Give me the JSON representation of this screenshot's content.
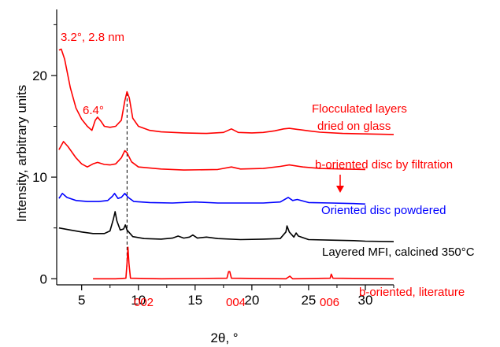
{
  "chart_data": {
    "type": "line",
    "xlabel": "2θ, °",
    "ylabel": "Intensity, arbitrary units",
    "xlim": [
      2.8,
      32.5
    ],
    "ylim": [
      -0.6,
      26.5
    ],
    "xticks": [
      5,
      10,
      15,
      20,
      25,
      30
    ],
    "yticks": [
      0,
      10,
      20
    ],
    "x_tick_labels": [
      "5",
      "10",
      "15",
      "20",
      "25",
      "30"
    ],
    "y_tick_labels": [
      "0",
      "10",
      "20"
    ],
    "reference_line_x": 9.0,
    "series": [
      {
        "name": "Flocculated layers dried on glass",
        "label_lines": [
          "Flocculated layers",
          "dried on glass"
        ],
        "color": "#ff0000",
        "points": [
          [
            3.0,
            22.5
          ],
          [
            3.2,
            22.6
          ],
          [
            3.5,
            21.6
          ],
          [
            4.0,
            18.8
          ],
          [
            4.5,
            16.8
          ],
          [
            5.0,
            15.7
          ],
          [
            5.5,
            15.0
          ],
          [
            5.9,
            14.6
          ],
          [
            6.2,
            15.6
          ],
          [
            6.4,
            15.9
          ],
          [
            6.7,
            15.5
          ],
          [
            7.0,
            15.0
          ],
          [
            7.5,
            14.9
          ],
          [
            8.0,
            15.0
          ],
          [
            8.5,
            15.6
          ],
          [
            8.8,
            17.5
          ],
          [
            9.0,
            18.4
          ],
          [
            9.2,
            17.8
          ],
          [
            9.5,
            15.8
          ],
          [
            10.0,
            15.0
          ],
          [
            11,
            14.6
          ],
          [
            12,
            14.45
          ],
          [
            14,
            14.35
          ],
          [
            16,
            14.3
          ],
          [
            17.5,
            14.4
          ],
          [
            18.2,
            14.75
          ],
          [
            18.8,
            14.4
          ],
          [
            20,
            14.35
          ],
          [
            21,
            14.4
          ],
          [
            22,
            14.55
          ],
          [
            22.8,
            14.75
          ],
          [
            23.3,
            14.8
          ],
          [
            24,
            14.7
          ],
          [
            25,
            14.55
          ],
          [
            26,
            14.42
          ],
          [
            28,
            14.3
          ],
          [
            30,
            14.25
          ],
          [
            32.5,
            14.2
          ]
        ]
      },
      {
        "name": "b-oriented disc by filtration",
        "label_lines": [
          "b-oriented disc by filtration"
        ],
        "color": "#ff0000",
        "points": [
          [
            3.0,
            12.7
          ],
          [
            3.4,
            13.5
          ],
          [
            3.8,
            13.0
          ],
          [
            4.5,
            11.9
          ],
          [
            5.0,
            11.3
          ],
          [
            5.5,
            11.0
          ],
          [
            6.0,
            11.3
          ],
          [
            6.4,
            11.45
          ],
          [
            7.0,
            11.25
          ],
          [
            7.5,
            11.2
          ],
          [
            8.0,
            11.3
          ],
          [
            8.5,
            11.9
          ],
          [
            8.8,
            12.6
          ],
          [
            9.0,
            12.4
          ],
          [
            9.4,
            11.5
          ],
          [
            10.0,
            11.0
          ],
          [
            12,
            10.8
          ],
          [
            14,
            10.7
          ],
          [
            17,
            10.75
          ],
          [
            18.2,
            11.0
          ],
          [
            19,
            10.8
          ],
          [
            21,
            10.85
          ],
          [
            22.5,
            11.05
          ],
          [
            23.3,
            11.2
          ],
          [
            24.5,
            11.0
          ],
          [
            26,
            10.85
          ],
          [
            28,
            10.8
          ],
          [
            30,
            10.75
          ]
        ]
      },
      {
        "name": "Oriented disc powdered",
        "label_lines": [
          "Oriented disc powdered"
        ],
        "color": "#0000ff",
        "points": [
          [
            3.0,
            7.9
          ],
          [
            3.3,
            8.4
          ],
          [
            3.7,
            8.0
          ],
          [
            4.5,
            7.7
          ],
          [
            5.5,
            7.6
          ],
          [
            6.5,
            7.6
          ],
          [
            7.3,
            7.7
          ],
          [
            7.7,
            8.1
          ],
          [
            7.9,
            8.4
          ],
          [
            8.2,
            7.9
          ],
          [
            8.5,
            8.0
          ],
          [
            8.8,
            8.4
          ],
          [
            9.1,
            8.0
          ],
          [
            9.6,
            7.6
          ],
          [
            11,
            7.5
          ],
          [
            13,
            7.45
          ],
          [
            15,
            7.55
          ],
          [
            17,
            7.45
          ],
          [
            19,
            7.45
          ],
          [
            21,
            7.45
          ],
          [
            22.5,
            7.55
          ],
          [
            23.2,
            8.0
          ],
          [
            23.6,
            7.7
          ],
          [
            24,
            7.8
          ],
          [
            25,
            7.5
          ],
          [
            27,
            7.45
          ],
          [
            29,
            7.4
          ],
          [
            30,
            7.35
          ]
        ]
      },
      {
        "name": "Layered MFI, calcined 350°C",
        "label_lines": [
          "Layered MFI, calcined 350°C"
        ],
        "color": "#000000",
        "points": [
          [
            3.0,
            5.0
          ],
          [
            4,
            4.8
          ],
          [
            5,
            4.6
          ],
          [
            6,
            4.45
          ],
          [
            7,
            4.45
          ],
          [
            7.5,
            4.7
          ],
          [
            7.8,
            5.9
          ],
          [
            7.95,
            6.6
          ],
          [
            8.1,
            5.7
          ],
          [
            8.4,
            4.8
          ],
          [
            8.7,
            4.9
          ],
          [
            8.85,
            5.3
          ],
          [
            9.0,
            4.8
          ],
          [
            9.5,
            4.15
          ],
          [
            10.5,
            3.95
          ],
          [
            12,
            3.9
          ],
          [
            13,
            4.0
          ],
          [
            13.5,
            4.2
          ],
          [
            14,
            4.0
          ],
          [
            14.5,
            4.1
          ],
          [
            14.8,
            4.3
          ],
          [
            15.2,
            4.0
          ],
          [
            16,
            4.1
          ],
          [
            17,
            3.95
          ],
          [
            19,
            3.85
          ],
          [
            21,
            3.9
          ],
          [
            22.5,
            3.95
          ],
          [
            23.0,
            4.6
          ],
          [
            23.1,
            5.2
          ],
          [
            23.3,
            4.6
          ],
          [
            23.7,
            4.1
          ],
          [
            23.9,
            4.5
          ],
          [
            24.1,
            4.2
          ],
          [
            25,
            3.85
          ],
          [
            27,
            3.8
          ],
          [
            29,
            3.75
          ],
          [
            30,
            3.7
          ],
          [
            32.5,
            3.65
          ]
        ]
      },
      {
        "name": "b-oriented, literature",
        "label_lines": [
          "b-oriented, literature"
        ],
        "color": "#ff0000",
        "points": [
          [
            6.0,
            0.0
          ],
          [
            8,
            0.0
          ],
          [
            8.9,
            0.05
          ],
          [
            9.0,
            1.5
          ],
          [
            9.08,
            3.1
          ],
          [
            9.17,
            1.5
          ],
          [
            9.3,
            0.05
          ],
          [
            12,
            0.0
          ],
          [
            17.8,
            0.05
          ],
          [
            17.95,
            0.7
          ],
          [
            18.05,
            0.7
          ],
          [
            18.2,
            0.05
          ],
          [
            23,
            0.0
          ],
          [
            23.35,
            0.25
          ],
          [
            23.6,
            0.0
          ],
          [
            26.9,
            0.05
          ],
          [
            27.0,
            0.45
          ],
          [
            27.15,
            0.05
          ],
          [
            32.5,
            0.0
          ]
        ]
      }
    ],
    "annotations": [
      {
        "text": "3.2°, 2.8 nm",
        "color": "#ff0000"
      },
      {
        "text": "6.4°",
        "color": "#ff0000"
      },
      {
        "text": "002",
        "color": "#ff0000"
      },
      {
        "text": "004",
        "color": "#ff0000"
      },
      {
        "text": "006",
        "color": "#ff0000"
      }
    ],
    "arrow_color": "#ff0000"
  }
}
